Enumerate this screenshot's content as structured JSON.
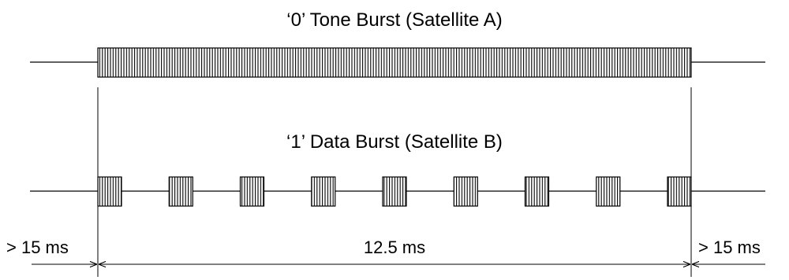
{
  "diagram": {
    "tone_burst": {
      "title": "‘0’ Tone Burst (Satellite A)"
    },
    "data_burst": {
      "title": "‘1’ Data Burst (Satellite B)",
      "pulse_count": 9
    },
    "timing": {
      "pre_label": "> 15 ms",
      "duration_label": "12.5 ms",
      "post_label": "> 15 ms"
    },
    "colors": {
      "line": "#000000",
      "background": "#ffffff"
    }
  }
}
